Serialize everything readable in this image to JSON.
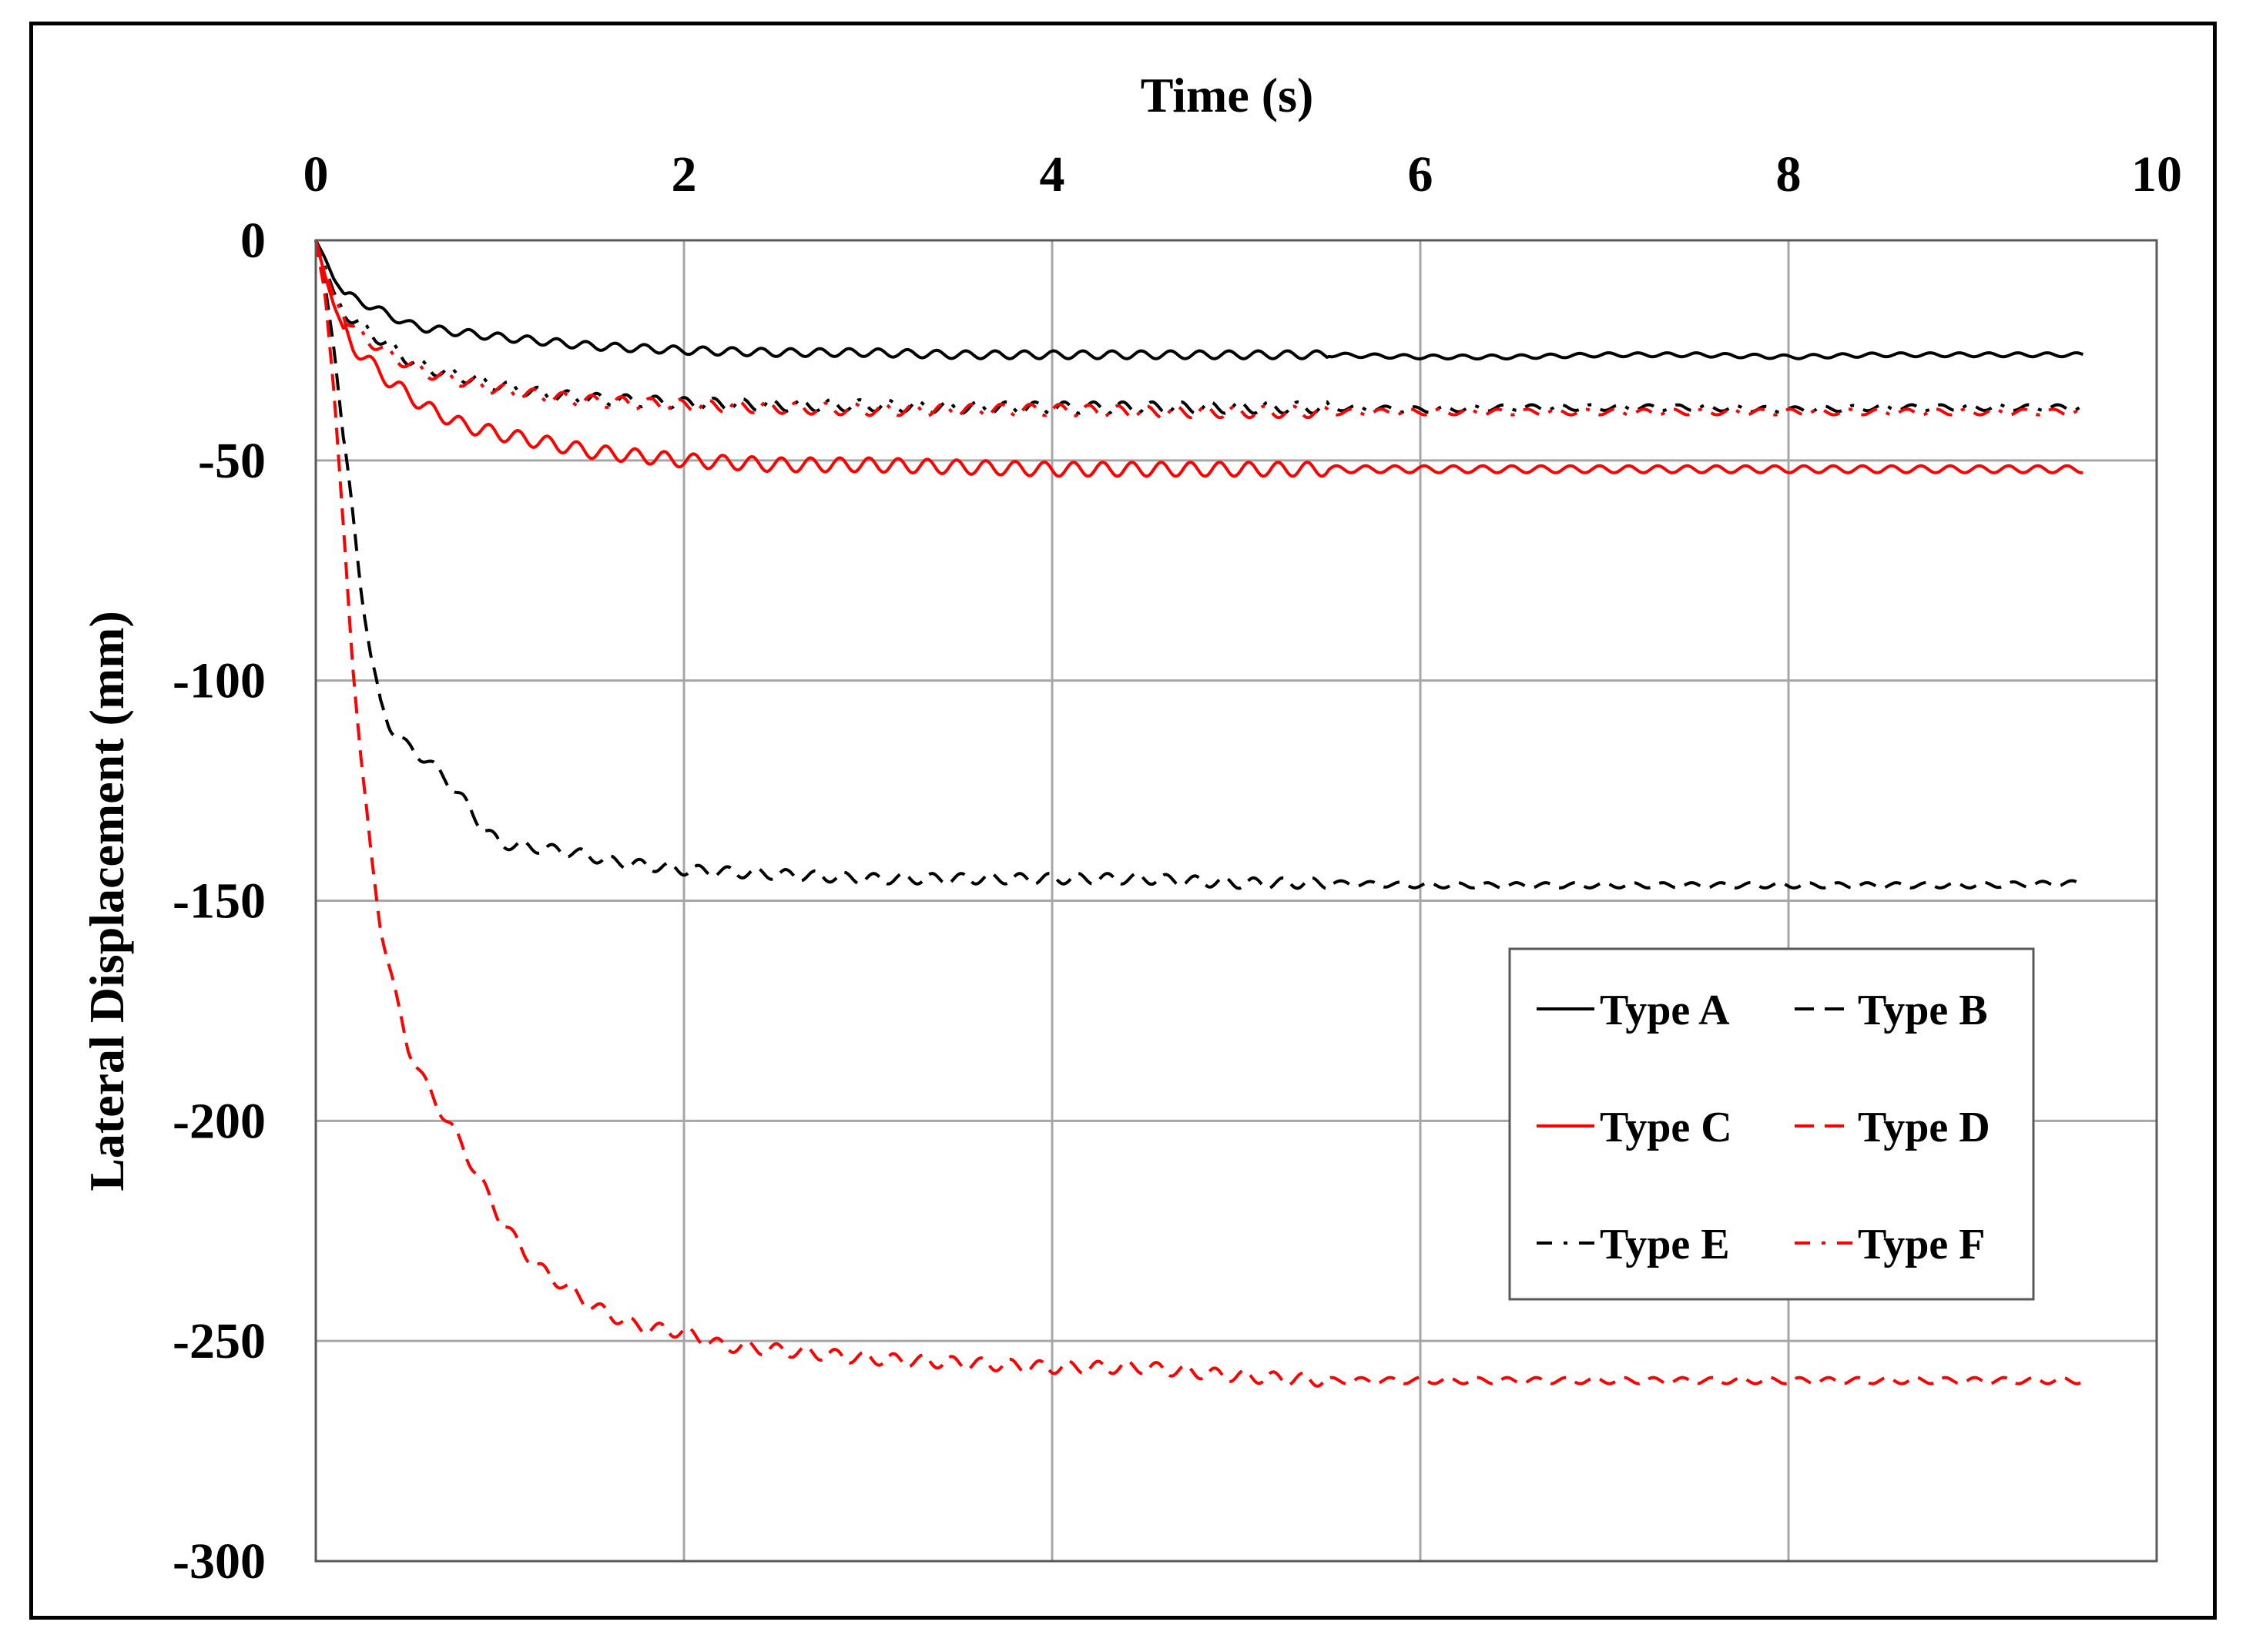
{
  "chart_data": {
    "type": "line",
    "title": "",
    "xlabel": "Time (s)",
    "ylabel": "Lateral Displacement (mm)",
    "xlim": [
      0,
      10
    ],
    "ylim": [
      -300,
      0
    ],
    "xticks": [
      0,
      2,
      4,
      6,
      8,
      10
    ],
    "yticks": [
      0,
      -50,
      -100,
      -150,
      -200,
      -250,
      -300
    ],
    "x_axis_position": "top",
    "grid": true,
    "legend_position": "right",
    "colors": {
      "black": "#000000",
      "red": "#ff0000",
      "grid": "#a6a6a6"
    },
    "series": [
      {
        "name": "Type A",
        "color": "#000000",
        "dash": "solid",
        "x": [
          0,
          0.05,
          0.1,
          0.15,
          0.2,
          0.3,
          0.4,
          0.5,
          0.6,
          0.8,
          1.0,
          1.25,
          1.5,
          2.0,
          2.5,
          3.0,
          3.5,
          4.0,
          4.5,
          5.0,
          5.5,
          6.0,
          6.5,
          7.0,
          7.5,
          8.0,
          8.5,
          9.0,
          9.6
        ],
        "y": [
          0,
          -4,
          -9,
          -12,
          -13,
          -15,
          -17,
          -19,
          -20,
          -21,
          -22,
          -23,
          -24,
          -25,
          -25.5,
          -25.5,
          -26,
          -26,
          -26,
          -26,
          -26,
          -26.5,
          -26.5,
          -26,
          -26,
          -26.5,
          -26,
          -26,
          -26
        ]
      },
      {
        "name": "Type B",
        "color": "#000000",
        "dash": "dash",
        "x": [
          0,
          0.05,
          0.1,
          0.15,
          0.2,
          0.25,
          0.3,
          0.35,
          0.4,
          0.45,
          0.5,
          0.6,
          0.7,
          0.8,
          0.9,
          1.0,
          1.2,
          1.4,
          1.6,
          1.8,
          2.0,
          2.5,
          3.0,
          3.5,
          4.0,
          4.5,
          5.0,
          5.5,
          6.0,
          7.0,
          8.0,
          9.0,
          9.6
        ],
        "y": [
          0,
          -10,
          -25,
          -45,
          -62,
          -80,
          -95,
          -105,
          -110,
          -113,
          -115,
          -118,
          -122,
          -127,
          -133,
          -137,
          -138,
          -139,
          -141,
          -142,
          -143,
          -144,
          -145,
          -145,
          -145,
          -145,
          -146,
          -146,
          -146.5,
          -146.5,
          -146.5,
          -146.5,
          -146
        ]
      },
      {
        "name": "Type C",
        "color": "#ff0000",
        "dash": "solid",
        "x": [
          0,
          0.05,
          0.1,
          0.15,
          0.2,
          0.3,
          0.4,
          0.5,
          0.6,
          0.8,
          1.0,
          1.25,
          1.5,
          2.0,
          2.5,
          3.0,
          3.5,
          4.0,
          4.5,
          5.0,
          5.5,
          6.0,
          6.5,
          7.0,
          7.5,
          8.0,
          8.5,
          9.0,
          9.6
        ],
        "y": [
          0,
          -8,
          -15,
          -20,
          -24,
          -28,
          -32,
          -35,
          -38,
          -42,
          -44,
          -46,
          -48,
          -50,
          -51,
          -51,
          -51.5,
          -52,
          -52,
          -52,
          -52,
          -52,
          -52,
          -52,
          -52,
          -52,
          -52,
          -52,
          -52
        ]
      },
      {
        "name": "Type D",
        "color": "#ff0000",
        "dash": "dash",
        "x": [
          0,
          0.05,
          0.1,
          0.15,
          0.2,
          0.25,
          0.3,
          0.35,
          0.4,
          0.45,
          0.5,
          0.6,
          0.7,
          0.8,
          0.9,
          1.0,
          1.1,
          1.2,
          1.3,
          1.4,
          1.5,
          1.6,
          1.7,
          1.8,
          2.0,
          2.2,
          2.5,
          3.0,
          3.5,
          4.0,
          4.5,
          5.0,
          5.5,
          6.0,
          7.0,
          8.0,
          9.0,
          9.6
        ],
        "y": [
          0,
          -12,
          -35,
          -65,
          -95,
          -120,
          -140,
          -155,
          -165,
          -175,
          -183,
          -192,
          -199,
          -206,
          -214,
          -222,
          -228,
          -233,
          -236,
          -239,
          -242,
          -244,
          -246,
          -247,
          -248,
          -251,
          -252,
          -254,
          -255,
          -256,
          -256,
          -258,
          -259,
          -259,
          -259,
          -259,
          -259,
          -259
        ]
      },
      {
        "name": "Type E",
        "color": "#000000",
        "dash": "dashdot",
        "x": [
          0,
          0.05,
          0.1,
          0.15,
          0.2,
          0.3,
          0.4,
          0.5,
          0.6,
          0.8,
          1.0,
          1.25,
          1.5,
          2.0,
          2.5,
          3.0,
          3.5,
          4.0,
          4.5,
          5.0,
          5.5,
          6.0,
          6.5,
          7.0,
          7.5,
          8.0,
          8.5,
          9.0,
          9.6
        ],
        "y": [
          0,
          -6,
          -12,
          -16,
          -18,
          -21,
          -24,
          -27,
          -29,
          -31,
          -33,
          -35,
          -36,
          -37,
          -37.5,
          -37.5,
          -38,
          -38,
          -38,
          -38,
          -38,
          -38.5,
          -38,
          -38,
          -38,
          -38.5,
          -38,
          -38,
          -38
        ]
      },
      {
        "name": "Type F",
        "color": "#ff0000",
        "dash": "dashdot",
        "x": [
          0,
          0.05,
          0.1,
          0.15,
          0.2,
          0.3,
          0.4,
          0.5,
          0.6,
          0.8,
          1.0,
          1.25,
          1.5,
          2.0,
          2.5,
          3.0,
          3.5,
          4.0,
          4.5,
          5.0,
          5.5,
          6.0,
          6.5,
          7.0,
          7.5,
          8.0,
          8.5,
          9.0,
          9.6
        ],
        "y": [
          0,
          -7,
          -13,
          -17,
          -20,
          -23,
          -26,
          -28,
          -30,
          -32,
          -34,
          -35.5,
          -36.5,
          -37.5,
          -38,
          -38.5,
          -38.5,
          -38.5,
          -39,
          -39,
          -39,
          -39,
          -39,
          -39,
          -39,
          -39,
          -39,
          -39,
          -39
        ]
      }
    ]
  }
}
